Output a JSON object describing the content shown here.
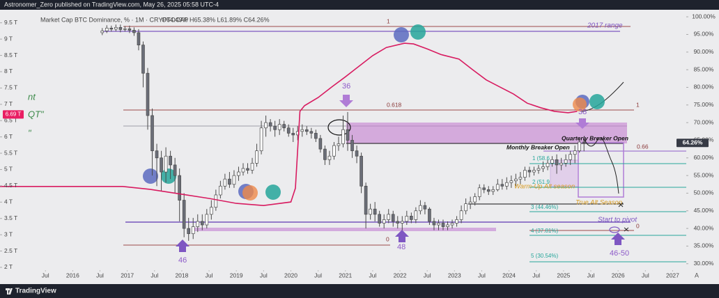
{
  "header": {
    "publisher": "Astronomer_Zero published on TradingView.com, May 26, 2025 05:58 UTC-4",
    "legend": "Market Cap BTC Dominance, % · 1M · CRYPTOCAP",
    "ohlc": "O64.49% H65.38% L61.89% C64.26%"
  },
  "chart_data": {
    "type": "candlestick",
    "up_color": "#ffffff",
    "down_color": "#6b6e78",
    "edge_color": "#4a4a4a",
    "x": [
      "2016-07",
      "2016-08",
      "2016-09",
      "2016-10",
      "2016-11",
      "2016-12",
      "2017-01",
      "2017-02",
      "2017-03",
      "2017-04",
      "2017-05",
      "2017-06",
      "2017-07",
      "2017-08",
      "2017-09",
      "2017-10",
      "2017-11",
      "2017-12",
      "2018-01",
      "2018-02",
      "2018-03",
      "2018-04",
      "2018-05",
      "2018-06",
      "2018-07",
      "2018-08",
      "2018-09",
      "2018-10",
      "2018-11",
      "2018-12",
      "2019-01",
      "2019-02",
      "2019-03",
      "2019-04",
      "2019-05",
      "2019-06",
      "2019-07",
      "2019-08",
      "2019-09",
      "2019-10",
      "2019-11",
      "2019-12",
      "2020-01",
      "2020-02",
      "2020-03",
      "2020-04",
      "2020-05",
      "2020-06",
      "2020-07",
      "2020-08",
      "2020-09",
      "2020-10",
      "2020-11",
      "2020-12",
      "2021-01",
      "2021-02",
      "2021-03",
      "2021-04",
      "2021-05",
      "2021-06",
      "2021-07",
      "2021-08",
      "2021-09",
      "2021-10",
      "2021-11",
      "2021-12",
      "2022-01",
      "2022-02",
      "2022-03",
      "2022-04",
      "2022-05",
      "2022-06",
      "2022-07",
      "2022-08",
      "2022-09",
      "2022-10",
      "2022-11",
      "2022-12",
      "2023-01",
      "2023-02",
      "2023-03",
      "2023-04",
      "2023-05",
      "2023-06",
      "2023-07",
      "2023-08",
      "2023-09",
      "2023-10",
      "2023-11",
      "2023-12",
      "2024-01",
      "2024-02",
      "2024-03",
      "2024-04",
      "2024-05",
      "2024-06",
      "2024-07",
      "2024-08",
      "2024-09",
      "2024-10",
      "2024-11",
      "2024-12",
      "2025-01",
      "2025-02",
      "2025-03",
      "2025-04",
      "2025-05"
    ],
    "open": [
      95.5,
      96.0,
      96.8,
      96.5,
      97.0,
      96.4,
      96.6,
      96.2,
      95.5,
      92.0,
      84.0,
      72.0,
      62.0,
      60.0,
      56.0,
      60.5,
      58.0,
      55.0,
      48.0,
      40.0,
      38.5,
      40.5,
      42.0,
      41.0,
      44.0,
      46.0,
      49.5,
      52.0,
      54.0,
      52.5,
      55.0,
      56.0,
      57.0,
      56.5,
      58.5,
      62.0,
      68.5,
      70.0,
      69.0,
      68.0,
      69.5,
      68.5,
      67.0,
      66.5,
      67.5,
      68.0,
      67.5,
      67.0,
      65.5,
      62.5,
      59.5,
      60.5,
      63.5,
      64.0,
      68.0,
      65.0,
      62.0,
      60.5,
      52.0,
      44.0,
      45.5,
      44.0,
      41.5,
      42.5,
      44.0,
      42.0,
      41.5,
      42.0,
      43.5,
      42.5,
      45.0,
      46.5,
      45.5,
      42.0,
      41.0,
      41.5,
      40.5,
      41.0,
      41.5,
      42.5,
      45.0,
      47.0,
      47.5,
      49.0,
      51.5,
      51.0,
      50.5,
      51.0,
      52.5,
      52.0,
      53.0,
      53.5,
      54.0,
      54.5,
      56.5,
      56.0,
      56.5,
      57.0,
      57.5,
      58.5,
      59.5,
      58.0,
      58.5,
      59.5,
      61.0,
      62.0,
      64.49
    ],
    "high": [
      96.8,
      97.6,
      97.5,
      97.8,
      97.8,
      97.4,
      97.5,
      97.0,
      96.5,
      93.0,
      85.5,
      74.0,
      64.0,
      62.0,
      63.0,
      62.0,
      60.0,
      57.0,
      50.0,
      43.0,
      43.0,
      44.0,
      44.0,
      45.5,
      48.0,
      51.0,
      53.5,
      55.5,
      56.0,
      56.5,
      57.5,
      58.5,
      58.5,
      60.0,
      64.0,
      70.5,
      72.0,
      71.0,
      70.5,
      71.0,
      70.5,
      69.5,
      68.5,
      69.0,
      69.5,
      69.0,
      68.5,
      68.0,
      66.5,
      63.5,
      62.0,
      64.5,
      66.0,
      72.0,
      73.0,
      66.5,
      63.5,
      61.5,
      53.0,
      47.0,
      47.5,
      45.0,
      44.0,
      45.5,
      45.0,
      43.5,
      43.5,
      45.0,
      44.5,
      46.0,
      48.0,
      47.5,
      46.0,
      43.0,
      42.5,
      42.5,
      42.0,
      42.5,
      43.5,
      46.5,
      48.5,
      49.0,
      50.0,
      52.5,
      52.5,
      52.0,
      52.0,
      54.0,
      54.0,
      54.5,
      55.0,
      55.5,
      56.0,
      57.5,
      57.5,
      57.5,
      58.0,
      59.0,
      59.5,
      60.5,
      61.0,
      60.0,
      61.0,
      62.0,
      63.5,
      65.5,
      65.38
    ],
    "low": [
      94.8,
      95.4,
      95.8,
      95.9,
      95.6,
      95.8,
      95.4,
      94.6,
      90.5,
      80.0,
      68.0,
      55.0,
      52.0,
      50.5,
      53.0,
      54.0,
      50.0,
      42.0,
      37.5,
      36.5,
      37.0,
      39.0,
      39.5,
      40.0,
      42.5,
      45.0,
      48.5,
      51.0,
      51.5,
      51.5,
      53.5,
      55.0,
      55.5,
      55.5,
      57.5,
      61.0,
      66.0,
      67.5,
      66.0,
      66.5,
      67.5,
      66.0,
      64.5,
      65.0,
      66.0,
      66.5,
      65.5,
      64.5,
      61.5,
      58.0,
      58.0,
      59.5,
      62.0,
      63.0,
      62.0,
      60.0,
      58.5,
      50.0,
      40.0,
      42.5,
      42.0,
      40.5,
      40.0,
      41.5,
      40.5,
      40.0,
      39.5,
      41.0,
      41.5,
      41.5,
      44.0,
      44.0,
      41.0,
      39.5,
      39.5,
      39.5,
      39.5,
      40.0,
      40.5,
      41.5,
      44.0,
      45.5,
      46.5,
      48.0,
      50.0,
      49.5,
      49.5,
      50.5,
      51.0,
      51.0,
      51.5,
      52.0,
      52.5,
      53.5,
      54.5,
      55.0,
      55.5,
      56.0,
      56.5,
      57.5,
      55.5,
      56.5,
      57.5,
      58.0,
      58.5,
      61.5,
      61.89
    ],
    "close": [
      96.0,
      96.8,
      96.5,
      97.0,
      96.4,
      96.6,
      96.2,
      95.5,
      92.0,
      84.0,
      72.0,
      62.0,
      60.0,
      56.0,
      60.5,
      58.0,
      55.0,
      48.0,
      40.0,
      38.5,
      40.5,
      42.0,
      41.0,
      44.0,
      46.0,
      49.5,
      52.0,
      54.0,
      52.5,
      55.0,
      56.0,
      57.0,
      56.5,
      58.5,
      62.0,
      68.5,
      70.0,
      69.0,
      68.0,
      69.5,
      68.5,
      67.0,
      66.5,
      67.5,
      68.0,
      67.5,
      67.0,
      65.5,
      62.5,
      59.5,
      60.5,
      63.5,
      64.0,
      68.0,
      65.0,
      62.0,
      60.5,
      52.0,
      44.0,
      45.5,
      44.0,
      41.5,
      42.5,
      44.0,
      42.0,
      41.5,
      42.0,
      43.5,
      42.5,
      45.0,
      46.5,
      45.5,
      42.0,
      41.0,
      41.5,
      40.5,
      41.0,
      41.5,
      42.5,
      45.0,
      47.0,
      47.5,
      49.0,
      51.5,
      51.0,
      50.5,
      51.0,
      52.5,
      52.0,
      53.0,
      53.5,
      54.0,
      54.5,
      56.5,
      56.0,
      56.5,
      57.0,
      57.5,
      58.5,
      59.5,
      58.0,
      58.5,
      59.5,
      61.0,
      62.0,
      64.49,
      64.26
    ],
    "overlay": {
      "color": "#d81b60",
      "x": [
        "2014-09",
        "2015-06",
        "2016-12",
        "2017-06",
        "2017-12",
        "2018-07",
        "2019-01",
        "2019-07",
        "2020-01",
        "2020-02",
        "2020-03",
        "2020-04",
        "2020-07",
        "2020-10",
        "2021-01",
        "2021-04",
        "2021-07",
        "2021-10",
        "2022-02",
        "2022-04",
        "2022-07",
        "2022-10",
        "2023-02",
        "2023-05",
        "2023-08",
        "2023-11",
        "2024-02",
        "2024-05",
        "2024-08",
        "2024-11",
        "2025-02",
        "2025-04"
      ],
      "values": [
        51.9,
        51.9,
        51.9,
        51.1,
        49.9,
        48.5,
        47.1,
        46.5,
        47.5,
        51.4,
        73.2,
        74.8,
        77.1,
        80.1,
        83.0,
        86.0,
        89.0,
        91.3,
        92.5,
        92.3,
        90.9,
        89.3,
        88.0,
        85.0,
        82.1,
        80.1,
        78.1,
        75.5,
        74.2,
        73.2,
        72.8,
        73.2
      ]
    },
    "xlim": [
      "2014-09",
      "2027-04"
    ],
    "xticks": [
      {
        "value": "2015-07",
        "label": "Jul"
      },
      {
        "value": "2016-01",
        "label": "2016"
      },
      {
        "value": "2016-07",
        "label": "Jul"
      },
      {
        "value": "2017-01",
        "label": "2017"
      },
      {
        "value": "2017-07",
        "label": "Jul"
      },
      {
        "value": "2018-01",
        "label": "2018"
      },
      {
        "value": "2018-07",
        "label": "Jul"
      },
      {
        "value": "2019-01",
        "label": "2019"
      },
      {
        "value": "2019-07",
        "label": "Jul"
      },
      {
        "value": "2020-01",
        "label": "2020"
      },
      {
        "value": "2020-07",
        "label": "Jul"
      },
      {
        "value": "2021-01",
        "label": "2021"
      },
      {
        "value": "2021-07",
        "label": "Jul"
      },
      {
        "value": "2022-01",
        "label": "2022"
      },
      {
        "value": "2022-07",
        "label": "Jul"
      },
      {
        "value": "2023-01",
        "label": "2023"
      },
      {
        "value": "2023-07",
        "label": "Jul"
      },
      {
        "value": "2024-01",
        "label": "2024"
      },
      {
        "value": "2024-07",
        "label": "Jul"
      },
      {
        "value": "2025-01",
        "label": "2025"
      },
      {
        "value": "2025-07",
        "label": "Jul"
      },
      {
        "value": "2026-01",
        "label": "2026"
      },
      {
        "value": "2026-07",
        "label": "Jul"
      },
      {
        "value": "2027-01",
        "label": "2027"
      }
    ],
    "ylim": [
      26.2,
      102
    ],
    "yticks": [
      {
        "value": 100,
        "label": "100.00%"
      },
      {
        "value": 95,
        "label": "95.00%"
      },
      {
        "value": 90,
        "label": "90.00%"
      },
      {
        "value": 85,
        "label": "85.00%"
      },
      {
        "value": 80,
        "label": "80.00%"
      },
      {
        "value": 75,
        "label": "75.00%"
      },
      {
        "value": 70,
        "label": "70.00%"
      },
      {
        "value": 65,
        "label": "65.00%"
      },
      {
        "value": 60,
        "label": "60.00%"
      },
      {
        "value": 55,
        "label": "55.00%"
      },
      {
        "value": 50,
        "label": "50.00%"
      },
      {
        "value": 45,
        "label": "45.00%"
      },
      {
        "value": 40,
        "label": "40.00%"
      },
      {
        "value": 35,
        "label": "35.00%"
      },
      {
        "value": 30,
        "label": "30.00%"
      }
    ],
    "y2lim": [
      1.7,
      9.9
    ],
    "y2ticks": [
      {
        "value": 9.5,
        "label": "9.5 T"
      },
      {
        "value": 9,
        "label": "9 T"
      },
      {
        "value": 8.5,
        "label": "8.5 T"
      },
      {
        "value": 8,
        "label": "8 T"
      },
      {
        "value": 7.5,
        "label": "7.5 T"
      },
      {
        "value": 7,
        "label": "7 T"
      },
      {
        "value": 6.5,
        "label": "6.5 T"
      },
      {
        "value": 6,
        "label": "6 T"
      },
      {
        "value": 5.5,
        "label": "5.5 T"
      },
      {
        "value": 5,
        "label": "5 T"
      },
      {
        "value": 4.5,
        "label": "4.5 T"
      },
      {
        "value": 4,
        "label": "4 T"
      },
      {
        "value": 3.5,
        "label": "3.5 T"
      },
      {
        "value": 3,
        "label": "3 T"
      },
      {
        "value": 2.5,
        "label": "2.5 T"
      },
      {
        "value": 2,
        "label": "2 T"
      }
    ],
    "grid": false,
    "last_value": {
      "value": 64.26,
      "label": "64.26%",
      "color": "#363a45"
    },
    "left_value": {
      "value": 6.69,
      "label": "6.69 T",
      "color": "#e91e63"
    }
  },
  "annotations": [
    "1",
    "2017 range",
    "0.618",
    "1",
    "36",
    "38",
    "Quarterly Breaker Open",
    "Monthly Breaker Open",
    "0.66",
    "1 (58.6",
    "2 (51.9",
    "Warm-Up Alt season",
    "True Alt Season",
    "3 (44.46%)",
    "Start to pivot",
    "0",
    "4 (37.81%)",
    "0",
    "48",
    "46",
    "46-50",
    "5 (30.54%)",
    "nt",
    "QT\"",
    "\""
  ],
  "footer": {
    "brand": "TradingView",
    "auto": "A"
  }
}
